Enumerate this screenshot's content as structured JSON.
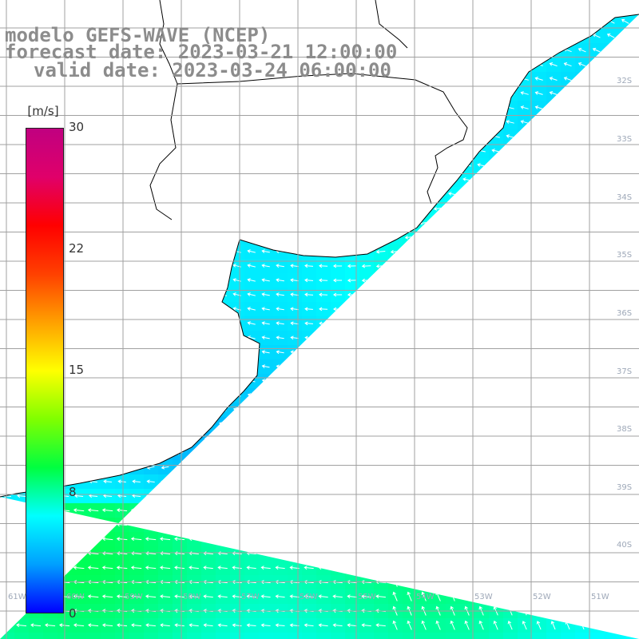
{
  "header": {
    "line1": "modelo GEFS-WAVE (NCEP)",
    "line2": "forecast date: 2023-03-21 12:00:00",
    "line3": "valid date: 2023-03-24 06:00:00"
  },
  "colorbar": {
    "units": "[m/s]",
    "ticks": [
      "30",
      "22",
      "15",
      "8",
      "0"
    ],
    "tick_values": [
      30,
      22,
      15,
      8,
      0
    ],
    "min": 0,
    "max": 30,
    "colors": [
      "#0000ff",
      "#00a0ff",
      "#00ffff",
      "#00ff40",
      "#80ff00",
      "#ffff00",
      "#ffa000",
      "#ff4000",
      "#ff0000",
      "#e0006a",
      "#c00080"
    ]
  },
  "map": {
    "land_color": "#ffffff",
    "coastline_color": "#000000",
    "grid_color": "#a0a0a0",
    "vector_color": "#ffffff",
    "lat_labels": [
      "32S",
      "33S",
      "34S",
      "35S",
      "36S",
      "37S",
      "38S",
      "39S",
      "40S"
    ],
    "lon_labels": [
      "61W",
      "60W",
      "59W",
      "58W",
      "57W",
      "56W",
      "55W",
      "54W",
      "53W",
      "52W",
      "51W"
    ]
  }
}
